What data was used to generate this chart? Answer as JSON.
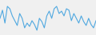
{
  "values": [
    55,
    72,
    45,
    80,
    75,
    60,
    50,
    40,
    65,
    55,
    35,
    45,
    38,
    50,
    42,
    30,
    55,
    48,
    35,
    60,
    70,
    55,
    75,
    80,
    65,
    70,
    60,
    75,
    72,
    50,
    65,
    55,
    45,
    60,
    48,
    40,
    55,
    42,
    35,
    50
  ],
  "line_color": "#4fa8e0",
  "background_color": "#f0f0f0",
  "ylim_min": 20,
  "ylim_max": 95
}
